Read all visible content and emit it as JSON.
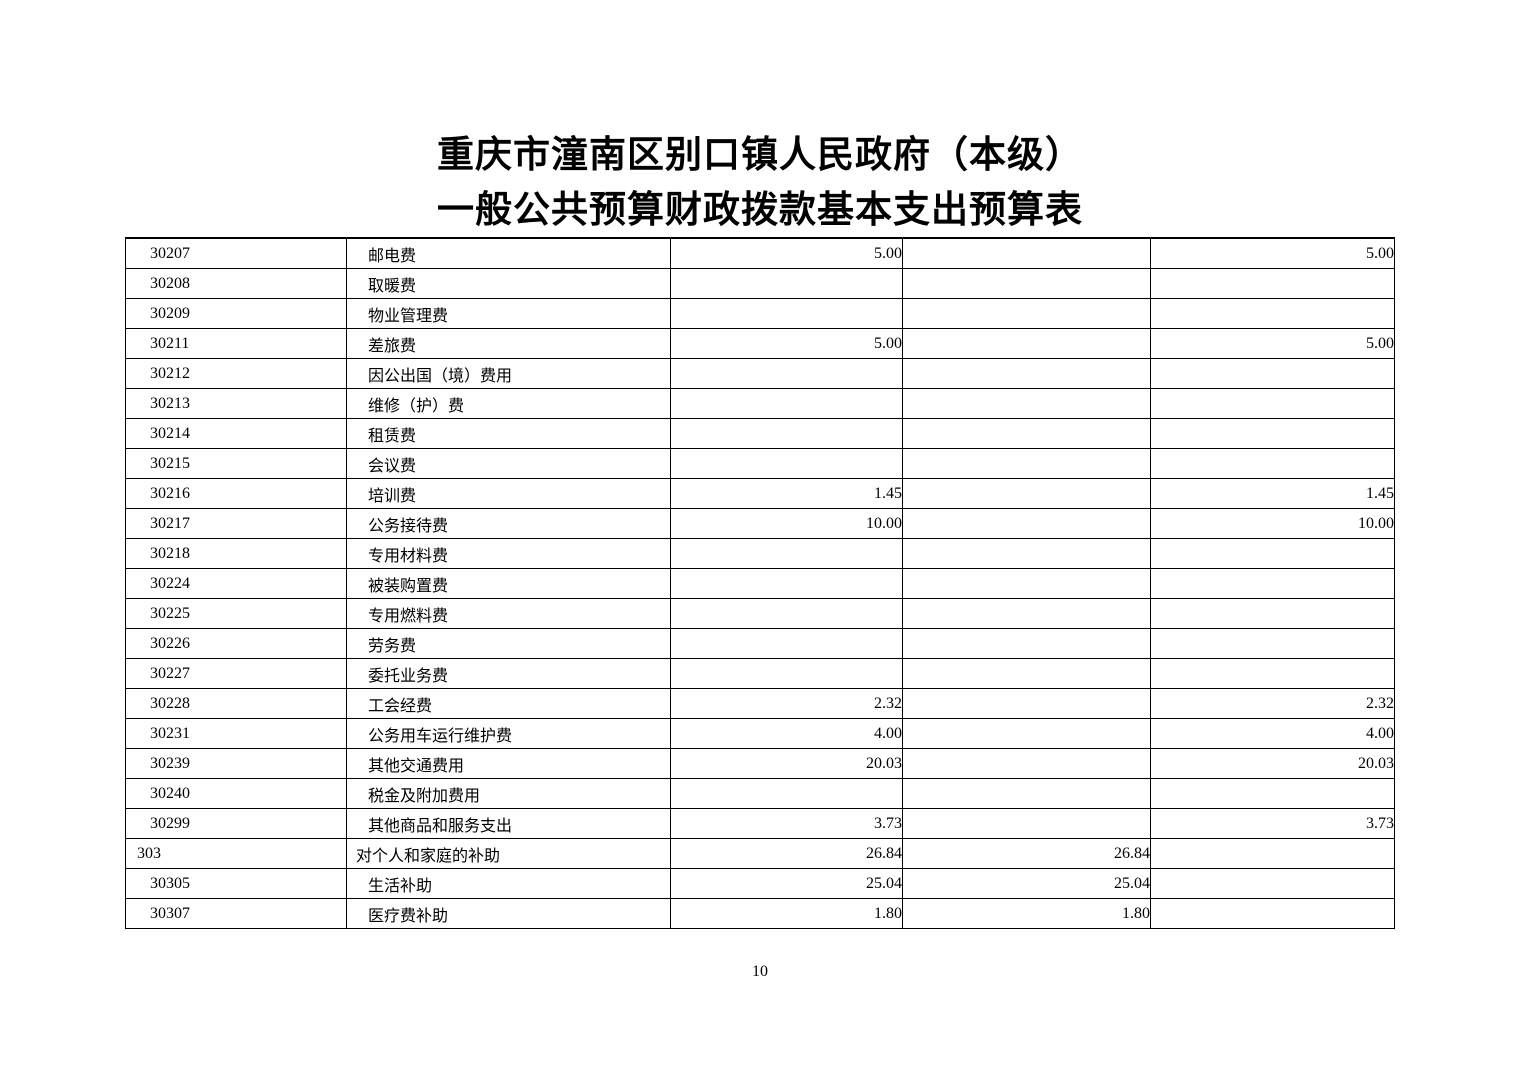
{
  "document": {
    "title_line1": "重庆市潼南区别口镇人民政府（本级）",
    "title_line2": "一般公共预算财政拨款基本支出预算表",
    "page_number": "10"
  },
  "table": {
    "rows": [
      {
        "code": "30207",
        "name": "邮电费",
        "amount1": "5.00",
        "amount2": "",
        "amount3": "5.00",
        "indent": 2
      },
      {
        "code": "30208",
        "name": "取暖费",
        "amount1": "",
        "amount2": "",
        "amount3": "",
        "indent": 2
      },
      {
        "code": "30209",
        "name": "物业管理费",
        "amount1": "",
        "amount2": "",
        "amount3": "",
        "indent": 2
      },
      {
        "code": "30211",
        "name": "差旅费",
        "amount1": "5.00",
        "amount2": "",
        "amount3": "5.00",
        "indent": 2
      },
      {
        "code": "30212",
        "name": "因公出国（境）费用",
        "amount1": "",
        "amount2": "",
        "amount3": "",
        "indent": 2
      },
      {
        "code": "30213",
        "name": "维修（护）费",
        "amount1": "",
        "amount2": "",
        "amount3": "",
        "indent": 2
      },
      {
        "code": "30214",
        "name": "租赁费",
        "amount1": "",
        "amount2": "",
        "amount3": "",
        "indent": 2
      },
      {
        "code": "30215",
        "name": "会议费",
        "amount1": "",
        "amount2": "",
        "amount3": "",
        "indent": 2
      },
      {
        "code": "30216",
        "name": "培训费",
        "amount1": "1.45",
        "amount2": "",
        "amount3": "1.45",
        "indent": 2
      },
      {
        "code": "30217",
        "name": "公务接待费",
        "amount1": "10.00",
        "amount2": "",
        "amount3": "10.00",
        "indent": 2
      },
      {
        "code": "30218",
        "name": "专用材料费",
        "amount1": "",
        "amount2": "",
        "amount3": "",
        "indent": 2
      },
      {
        "code": "30224",
        "name": "被装购置费",
        "amount1": "",
        "amount2": "",
        "amount3": "",
        "indent": 2
      },
      {
        "code": "30225",
        "name": "专用燃料费",
        "amount1": "",
        "amount2": "",
        "amount3": "",
        "indent": 2
      },
      {
        "code": "30226",
        "name": "劳务费",
        "amount1": "",
        "amount2": "",
        "amount3": "",
        "indent": 2
      },
      {
        "code": "30227",
        "name": "委托业务费",
        "amount1": "",
        "amount2": "",
        "amount3": "",
        "indent": 2
      },
      {
        "code": "30228",
        "name": "工会经费",
        "amount1": "2.32",
        "amount2": "",
        "amount3": "2.32",
        "indent": 2
      },
      {
        "code": "30231",
        "name": "公务用车运行维护费",
        "amount1": "4.00",
        "amount2": "",
        "amount3": "4.00",
        "indent": 2
      },
      {
        "code": "30239",
        "name": "其他交通费用",
        "amount1": "20.03",
        "amount2": "",
        "amount3": "20.03",
        "indent": 2
      },
      {
        "code": "30240",
        "name": "税金及附加费用",
        "amount1": "",
        "amount2": "",
        "amount3": "",
        "indent": 2
      },
      {
        "code": "30299",
        "name": "其他商品和服务支出",
        "amount1": "3.73",
        "amount2": "",
        "amount3": "3.73",
        "indent": 2
      },
      {
        "code": "303",
        "name": "对个人和家庭的补助",
        "amount1": "26.84",
        "amount2": "26.84",
        "amount3": "",
        "indent": 1
      },
      {
        "code": "30305",
        "name": "生活补助",
        "amount1": "25.04",
        "amount2": "25.04",
        "amount3": "",
        "indent": 2
      },
      {
        "code": "30307",
        "name": "医疗费补助",
        "amount1": "1.80",
        "amount2": "1.80",
        "amount3": "",
        "indent": 2
      }
    ]
  }
}
